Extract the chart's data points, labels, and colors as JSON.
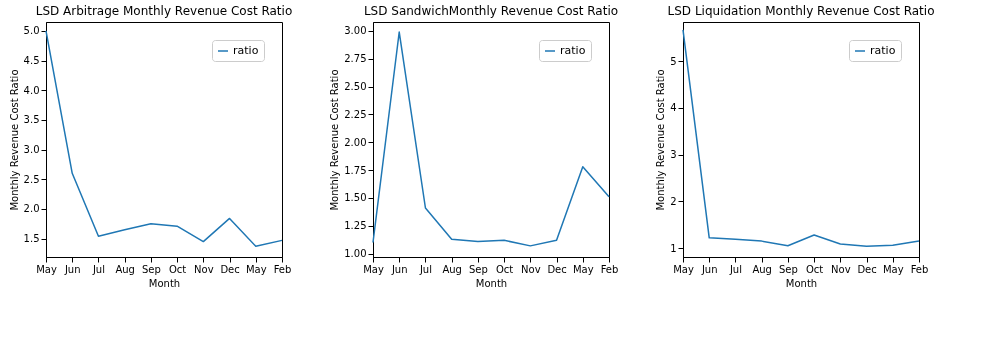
{
  "chart_data": [
    {
      "type": "line",
      "title": "LSD Arbitrage Monthly Revenue Cost Ratio",
      "xlabel": "Month",
      "ylabel": "Monthly Revenue Cost Ratio",
      "categories": [
        "May",
        "Jun",
        "Jul",
        "Aug",
        "Sep",
        "Oct",
        "Nov",
        "Dec",
        "May",
        "Feb"
      ],
      "series": [
        {
          "name": "ratio",
          "color": "#1f77b4",
          "values": [
            5.0,
            2.6,
            1.54,
            1.65,
            1.75,
            1.71,
            1.45,
            1.84,
            1.37,
            1.47
          ]
        }
      ],
      "ylim": [
        1.19,
        5.15
      ],
      "yticks": [
        {
          "value": 1.5,
          "label": "1.5"
        },
        {
          "value": 2,
          "label": "2.0"
        },
        {
          "value": 2.5,
          "label": "2.5"
        },
        {
          "value": 3,
          "label": "3.0"
        },
        {
          "value": 3.5,
          "label": "3.5"
        },
        {
          "value": 4,
          "label": "4.0"
        },
        {
          "value": 4.5,
          "label": "4.5"
        },
        {
          "value": 5,
          "label": "5.0"
        }
      ],
      "legend": "top right",
      "grid": false
    },
    {
      "type": "line",
      "title": "LSD SandwichMonthly Revenue Cost Ratio",
      "xlabel": "Month",
      "ylabel": "Monthly Revenue Cost Ratio",
      "categories": [
        "May",
        "Jun",
        "Jul",
        "Aug",
        "Sep",
        "Oct",
        "Nov",
        "Dec",
        "May",
        "Feb"
      ],
      "series": [
        {
          "name": "ratio",
          "color": "#1f77b4",
          "values": [
            1.1,
            2.99,
            1.41,
            1.13,
            1.11,
            1.12,
            1.07,
            1.12,
            1.78,
            1.51
          ]
        }
      ],
      "ylim": [
        0.97,
        3.08
      ],
      "yticks": [
        {
          "value": 1,
          "label": "1.00"
        },
        {
          "value": 1.25,
          "label": "1.25"
        },
        {
          "value": 1.5,
          "label": "1.50"
        },
        {
          "value": 1.75,
          "label": "1.75"
        },
        {
          "value": 2,
          "label": "2.00"
        },
        {
          "value": 2.25,
          "label": "2.25"
        },
        {
          "value": 2.5,
          "label": "2.50"
        },
        {
          "value": 2.75,
          "label": "2.75"
        },
        {
          "value": 3,
          "label": "3.00"
        }
      ],
      "legend": "top right",
      "grid": false
    },
    {
      "type": "line",
      "title": "LSD Liquidation Monthly Revenue Cost Ratio",
      "xlabel": "Month",
      "ylabel": "Monthly Revenue Cost Ratio",
      "categories": [
        "May",
        "Jun",
        "Jul",
        "Aug",
        "Sep",
        "Oct",
        "Nov",
        "Dec",
        "May",
        "Feb"
      ],
      "series": [
        {
          "name": "ratio",
          "color": "#1f77b4",
          "values": [
            5.67,
            1.22,
            1.19,
            1.15,
            1.05,
            1.28,
            1.09,
            1.04,
            1.06,
            1.15
          ]
        }
      ],
      "ylim": [
        0.81,
        5.84
      ],
      "yticks": [
        1,
        2,
        3,
        4,
        5
      ],
      "legend": "top right",
      "grid": false
    }
  ]
}
